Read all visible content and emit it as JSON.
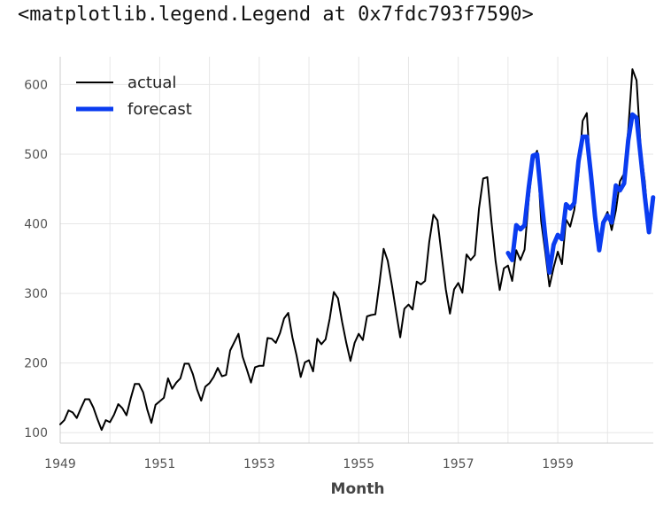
{
  "output_repr": "<matplotlib.legend.Legend at 0x7fdc793f7590>",
  "chart_data": {
    "type": "line",
    "xlabel": "Month",
    "ylabel": "",
    "xlim": [
      1949.0,
      1960.92
    ],
    "ylim": [
      85,
      640
    ],
    "xticks": [
      1949,
      1951,
      1953,
      1955,
      1957,
      1959
    ],
    "yticks": [
      100,
      200,
      300,
      400,
      500,
      600
    ],
    "grid": true,
    "legend": "top-left",
    "series": [
      {
        "name": "actual",
        "color": "#000000",
        "x_start": 1949.0,
        "x_step_months": 1,
        "values": [
          112,
          118,
          132,
          129,
          121,
          135,
          148,
          148,
          136,
          119,
          104,
          118,
          115,
          126,
          141,
          135,
          125,
          149,
          170,
          170,
          158,
          133,
          114,
          140,
          145,
          150,
          178,
          163,
          172,
          178,
          199,
          199,
          184,
          162,
          146,
          166,
          171,
          180,
          193,
          181,
          183,
          218,
          230,
          242,
          209,
          191,
          172,
          194,
          196,
          196,
          236,
          235,
          229,
          243,
          264,
          272,
          237,
          211,
          180,
          201,
          204,
          188,
          235,
          227,
          234,
          264,
          302,
          293,
          259,
          229,
          203,
          229,
          242,
          233,
          267,
          269,
          270,
          315,
          364,
          347,
          312,
          274,
          237,
          278,
          284,
          277,
          317,
          313,
          318,
          374,
          413,
          405,
          355,
          306,
          271,
          306,
          315,
          301,
          356,
          348,
          355,
          422,
          465,
          467,
          404,
          347,
          305,
          336,
          340,
          318,
          362,
          348,
          363,
          435,
          491,
          505,
          404,
          359,
          310,
          337,
          360,
          342,
          406,
          396,
          420,
          472,
          548,
          559,
          463,
          407,
          362,
          405,
          417,
          391,
          419,
          461,
          472,
          535,
          622,
          606,
          508,
          461,
          390,
          432
        ]
      },
      {
        "name": "forecast",
        "color": "#0a3cf0",
        "x_start": 1958.0,
        "x_step_months": 1,
        "values": [
          358,
          348,
          398,
          392,
          398,
          452,
          498,
          500,
          440,
          382,
          330,
          370,
          384,
          378,
          428,
          422,
          430,
          490,
          525,
          525,
          470,
          410,
          362,
          402,
          412,
          402,
          455,
          448,
          458,
          520,
          557,
          552,
          496,
          440,
          388,
          438
        ]
      }
    ]
  }
}
